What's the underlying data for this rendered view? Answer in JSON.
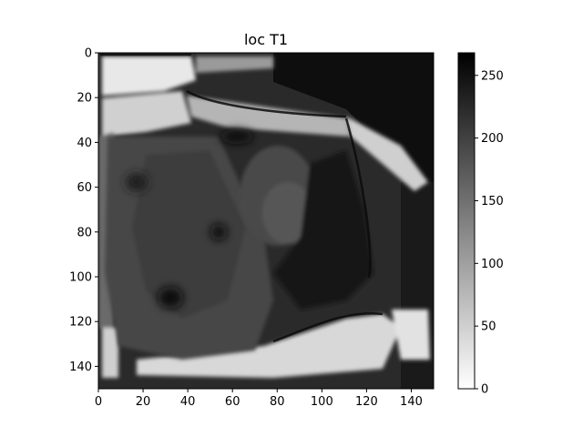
{
  "chart_data": {
    "type": "heatmap",
    "title": "loc T1",
    "xlabel": "",
    "ylabel": "",
    "colormap": "gray_r",
    "xlim": [
      0,
      150
    ],
    "ylim": [
      150,
      0
    ],
    "x_ticks": [
      0,
      20,
      40,
      60,
      80,
      100,
      120,
      140
    ],
    "y_ticks": [
      0,
      20,
      40,
      60,
      80,
      100,
      120,
      140
    ],
    "colorbar": {
      "range": [
        0,
        268
      ],
      "ticks": [
        0,
        50,
        100,
        150,
        200,
        250
      ]
    },
    "grid": false,
    "colors": {
      "low": "#ffffff",
      "high": "#000000"
    }
  }
}
